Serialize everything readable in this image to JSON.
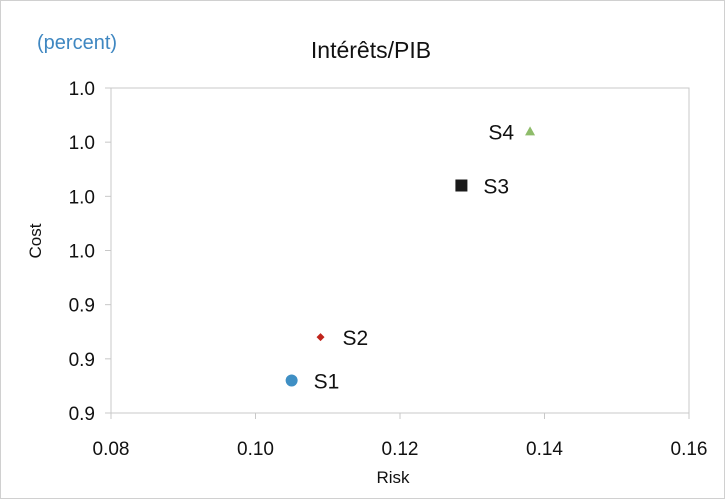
{
  "chart_data": {
    "type": "scatter",
    "unit_label": "(percent)",
    "title": "Intérêts/PIB",
    "xlabel": "Risk",
    "ylabel": "Cost",
    "xlim": [
      0.08,
      0.16
    ],
    "x_ticks": [
      "0.08",
      "0.10",
      "0.12",
      "0.14",
      "0.16"
    ],
    "y_tick_labels": [
      "1.0",
      "1.0",
      "1.0",
      "1.0",
      "0.9",
      "0.9",
      "0.9"
    ],
    "grid": false,
    "points": [
      {
        "label": "S1",
        "x": 0.105,
        "y": 0.88,
        "marker": "circle",
        "color": "#3f8fc4"
      },
      {
        "label": "S2",
        "x": 0.109,
        "y": 0.92,
        "marker": "diamond",
        "color": "#c0241c"
      },
      {
        "label": "S3",
        "x": 0.1285,
        "y": 1.06,
        "marker": "square",
        "color": "#1a1a1a"
      },
      {
        "label": "S4",
        "x": 0.138,
        "y": 1.11,
        "marker": "triangle",
        "color": "#8ebc6a"
      }
    ]
  }
}
